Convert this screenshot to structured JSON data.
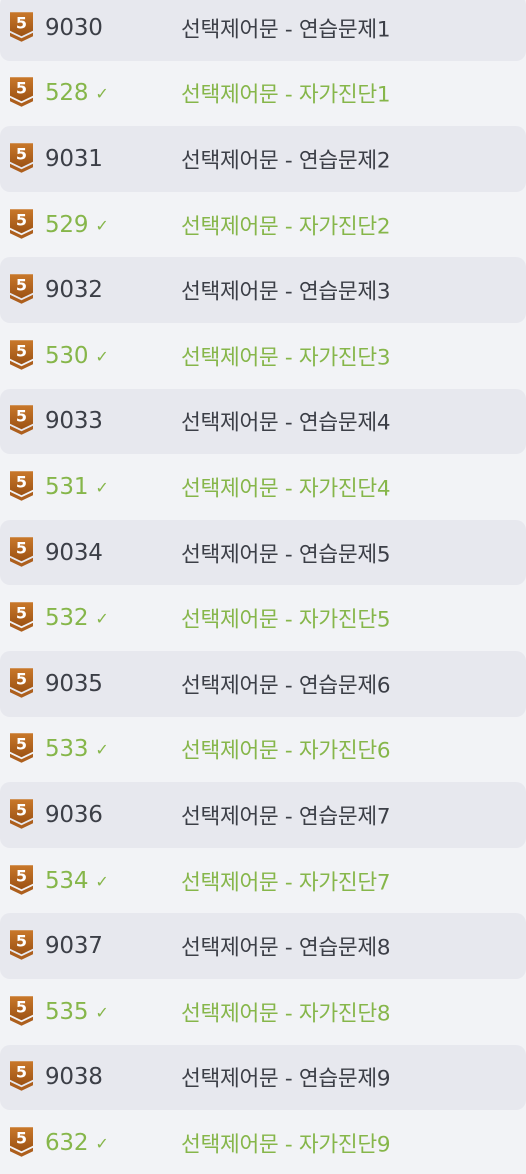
{
  "colors": {
    "solved": "#86b64a",
    "default_text": "#3c3f47",
    "badge": "#b7651c"
  },
  "badge": {
    "icon": "bronze-tier-5-badge",
    "label": "5"
  },
  "check_icon": "✓",
  "problems": [
    {
      "number": "9030",
      "title": "선택제어문 - 연습문제1",
      "solved": false
    },
    {
      "number": "528",
      "title": "선택제어문 - 자가진단1",
      "solved": true
    },
    {
      "number": "9031",
      "title": "선택제어문 - 연습문제2",
      "solved": false
    },
    {
      "number": "529",
      "title": "선택제어문 - 자가진단2",
      "solved": true
    },
    {
      "number": "9032",
      "title": "선택제어문 - 연습문제3",
      "solved": false
    },
    {
      "number": "530",
      "title": "선택제어문 - 자가진단3",
      "solved": true
    },
    {
      "number": "9033",
      "title": "선택제어문 - 연습문제4",
      "solved": false
    },
    {
      "number": "531",
      "title": "선택제어문 - 자가진단4",
      "solved": true
    },
    {
      "number": "9034",
      "title": "선택제어문 - 연습문제5",
      "solved": false
    },
    {
      "number": "532",
      "title": "선택제어문 - 자가진단5",
      "solved": true
    },
    {
      "number": "9035",
      "title": "선택제어문 - 연습문제6",
      "solved": false
    },
    {
      "number": "533",
      "title": "선택제어문 - 자가진단6",
      "solved": true
    },
    {
      "number": "9036",
      "title": "선택제어문 - 연습문제7",
      "solved": false
    },
    {
      "number": "534",
      "title": "선택제어문 - 자가진단7",
      "solved": true
    },
    {
      "number": "9037",
      "title": "선택제어문 - 연습문제8",
      "solved": false
    },
    {
      "number": "535",
      "title": "선택제어문 - 자가진단8",
      "solved": true
    },
    {
      "number": "9038",
      "title": "선택제어문 - 연습문제9",
      "solved": false
    },
    {
      "number": "632",
      "title": "선택제어문 - 자가진단9",
      "solved": true
    }
  ]
}
